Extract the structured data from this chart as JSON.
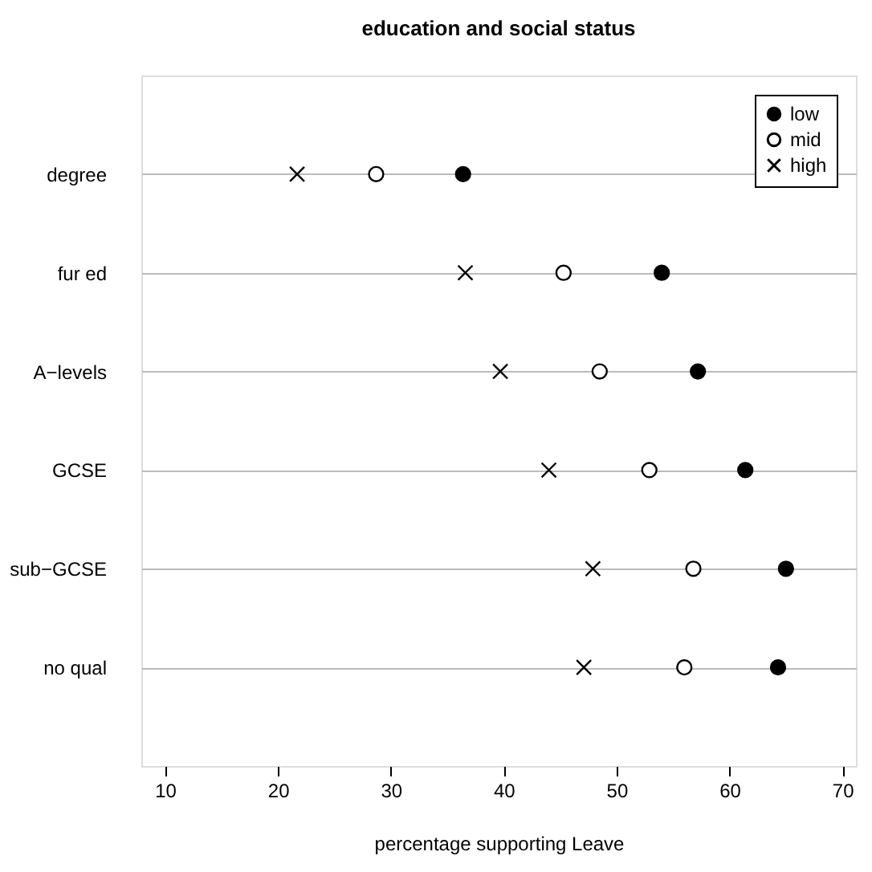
{
  "chart_data": {
    "type": "scatter",
    "title": "education and social status",
    "xlabel": "percentage supporting Leave",
    "categories": [
      "degree",
      "fur ed",
      "A−levels",
      "GCSE",
      "sub−GCSE",
      "no qual"
    ],
    "series": [
      {
        "name": "low",
        "color": "#000000",
        "marker": "circle",
        "values": [
          36.4,
          54.0,
          57.2,
          61.4,
          65.0,
          64.3
        ]
      },
      {
        "name": "mid",
        "color": "#ffffff",
        "marker": "circle",
        "values": [
          28.7,
          45.3,
          48.5,
          52.9,
          56.8,
          56.0
        ]
      },
      {
        "name": "high",
        "color": "#000000",
        "marker": "cross",
        "values": [
          21.7,
          36.6,
          39.7,
          44.0,
          47.9,
          47.1
        ]
      }
    ],
    "orientation": "horizontal",
    "xlim": [
      7.9,
      71.2
    ],
    "xticks": [
      10,
      20,
      30,
      40,
      50,
      60,
      70
    ],
    "grid": "y",
    "legend": "top right"
  }
}
